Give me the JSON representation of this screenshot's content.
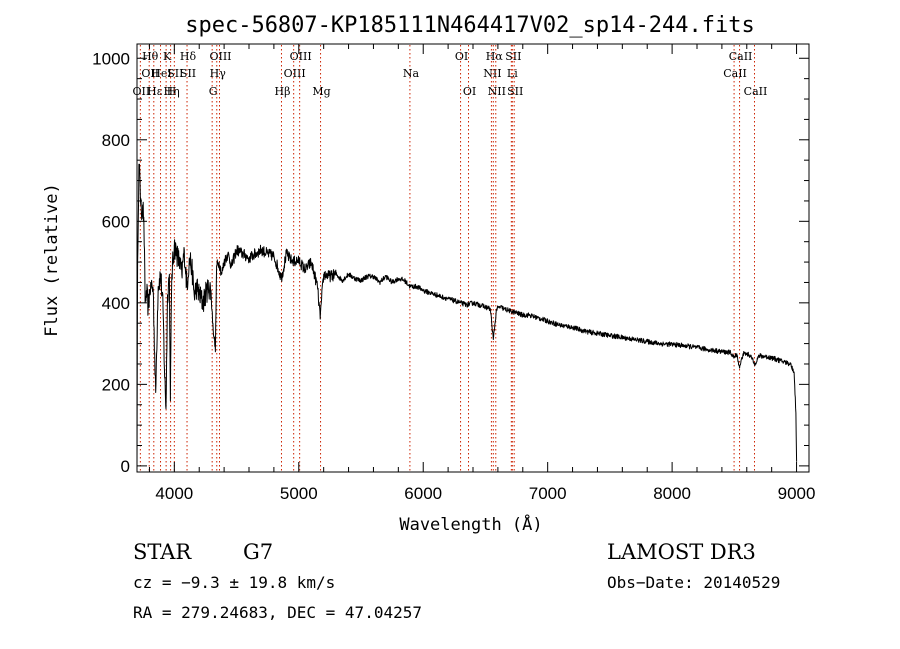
{
  "chart_data": {
    "type": "line",
    "title": "spec-56807-KP185111N464417V02_sp14-244.fits",
    "xlabel": "Wavelength (Å)",
    "ylabel": "Flux (relative)",
    "xlim": [
      3700,
      9100
    ],
    "ylim": [
      -15,
      1035
    ],
    "x_ticks": [
      4000,
      5000,
      6000,
      7000,
      8000,
      9000
    ],
    "y_ticks": [
      0,
      200,
      400,
      600,
      800,
      1000
    ],
    "grid": false,
    "series": [
      {
        "name": "flux",
        "x": [
          3700,
          3705,
          3715,
          3725,
          3735,
          3745,
          3755,
          3765,
          3775,
          3790,
          3810,
          3830,
          3850,
          3870,
          3890,
          3910,
          3920,
          3933,
          3945,
          3960,
          3968,
          3980,
          4000,
          4020,
          4040,
          4060,
          4080,
          4101,
          4120,
          4140,
          4160,
          4180,
          4200,
          4230,
          4260,
          4290,
          4310,
          4330,
          4340,
          4360,
          4380,
          4400,
          4430,
          4460,
          4500,
          4550,
          4600,
          4650,
          4700,
          4750,
          4800,
          4861,
          4900,
          4950,
          5000,
          5050,
          5100,
          5150,
          5172,
          5183,
          5200,
          5250,
          5300,
          5350,
          5400,
          5450,
          5500,
          5550,
          5600,
          5650,
          5700,
          5750,
          5800,
          5850,
          5893,
          5950,
          6000,
          6050,
          6100,
          6150,
          6200,
          6250,
          6300,
          6350,
          6400,
          6450,
          6500,
          6540,
          6563,
          6590,
          6620,
          6650,
          6700,
          6750,
          6800,
          6850,
          6900,
          6950,
          7000,
          7100,
          7200,
          7300,
          7400,
          7500,
          7600,
          7700,
          7800,
          7900,
          8000,
          8100,
          8200,
          8300,
          8400,
          8470,
          8498,
          8520,
          8542,
          8570,
          8600,
          8630,
          8662,
          8700,
          8750,
          8800,
          8850,
          8900,
          8950,
          8980,
          8995,
          9000
        ],
        "values": [
          5,
          500,
          740,
          690,
          620,
          640,
          610,
          400,
          430,
          390,
          450,
          430,
          180,
          440,
          470,
          380,
          240,
          140,
          420,
          470,
          160,
          470,
          540,
          520,
          500,
          470,
          530,
          440,
          510,
          490,
          420,
          440,
          420,
          400,
          430,
          440,
          350,
          280,
          490,
          500,
          470,
          500,
          520,
          490,
          530,
          520,
          510,
          520,
          530,
          520,
          515,
          460,
          520,
          500,
          505,
          480,
          500,
          440,
          360,
          410,
          470,
          465,
          470,
          455,
          470,
          460,
          455,
          465,
          465,
          450,
          465,
          450,
          460,
          455,
          440,
          440,
          430,
          425,
          420,
          415,
          410,
          405,
          400,
          395,
          400,
          395,
          390,
          385,
          310,
          385,
          390,
          385,
          380,
          375,
          370,
          370,
          365,
          360,
          355,
          345,
          340,
          330,
          325,
          320,
          315,
          310,
          305,
          300,
          298,
          295,
          290,
          285,
          280,
          278,
          265,
          275,
          240,
          275,
          275,
          270,
          250,
          270,
          268,
          265,
          260,
          255,
          250,
          230,
          130,
          10
        ]
      }
    ],
    "line_marks": [
      {
        "wavelength": 3727,
        "labels": [
          "OII"
        ],
        "row": 3
      },
      {
        "wavelength": 3798,
        "labels": [
          "Hθ",
          "OII"
        ],
        "row": 1
      },
      {
        "wavelength": 3835,
        "labels": [
          "Hε"
        ],
        "row": 3
      },
      {
        "wavelength": 3889,
        "labels": [
          "HeI"
        ],
        "row": 2
      },
      {
        "wavelength": 3934,
        "labels": [
          "K"
        ],
        "row": 1
      },
      {
        "wavelength": 3970,
        "labels": [
          "Hη",
          "H"
        ],
        "row": 3
      },
      {
        "wavelength": 4000,
        "labels": [
          "SII"
        ],
        "row": 2
      },
      {
        "wavelength": 4102,
        "labels": [
          "Hδ",
          "SII"
        ],
        "row": 1
      },
      {
        "wavelength": 4304,
        "labels": [
          "G"
        ],
        "row": 3
      },
      {
        "wavelength": 4341,
        "labels": [
          "Hγ"
        ],
        "row": 2
      },
      {
        "wavelength": 4363,
        "labels": [
          "OIII"
        ],
        "row": 1
      },
      {
        "wavelength": 4861,
        "labels": [
          "Hβ"
        ],
        "row": 3
      },
      {
        "wavelength": 4959,
        "labels": [
          "OIII"
        ],
        "row": 2
      },
      {
        "wavelength": 5007,
        "labels": [
          "OIII"
        ],
        "row": 1
      },
      {
        "wavelength": 5175,
        "labels": [
          "Mg"
        ],
        "row": 3
      },
      {
        "wavelength": 5893,
        "labels": [
          "Na"
        ],
        "row": 2
      },
      {
        "wavelength": 6300,
        "labels": [
          "OI"
        ],
        "row": 1
      },
      {
        "wavelength": 6364,
        "labels": [
          "OI"
        ],
        "row": 3
      },
      {
        "wavelength": 6548,
        "labels": [
          "NII"
        ],
        "row": 2
      },
      {
        "wavelength": 6563,
        "labels": [
          "Hα"
        ],
        "row": 1
      },
      {
        "wavelength": 6583,
        "labels": [
          "NII"
        ],
        "row": 3
      },
      {
        "wavelength": 6708,
        "labels": [
          "Li"
        ],
        "row": 2
      },
      {
        "wavelength": 6716,
        "labels": [
          "SII"
        ],
        "row": 1
      },
      {
        "wavelength": 6731,
        "labels": [
          "SII"
        ],
        "row": 3
      },
      {
        "wavelength": 8498,
        "labels": [
          "CaII"
        ],
        "row": 2
      },
      {
        "wavelength": 8542,
        "labels": [
          "CaII"
        ],
        "row": 1
      },
      {
        "wavelength": 8662,
        "labels": [
          "CaII"
        ],
        "row": 3
      }
    ]
  },
  "info": {
    "class": "STAR",
    "subclass": "G7",
    "cz": "cz = −9.3 ± 19.8 km/s",
    "coords": "RA = 279.24683, DEC =  47.04257",
    "survey": "LAMOST DR3",
    "obs_date": "Obs−Date: 20140529"
  },
  "colors": {
    "line_mark": "#cc2200",
    "spectrum": "#000000",
    "background": "#ffffff"
  }
}
